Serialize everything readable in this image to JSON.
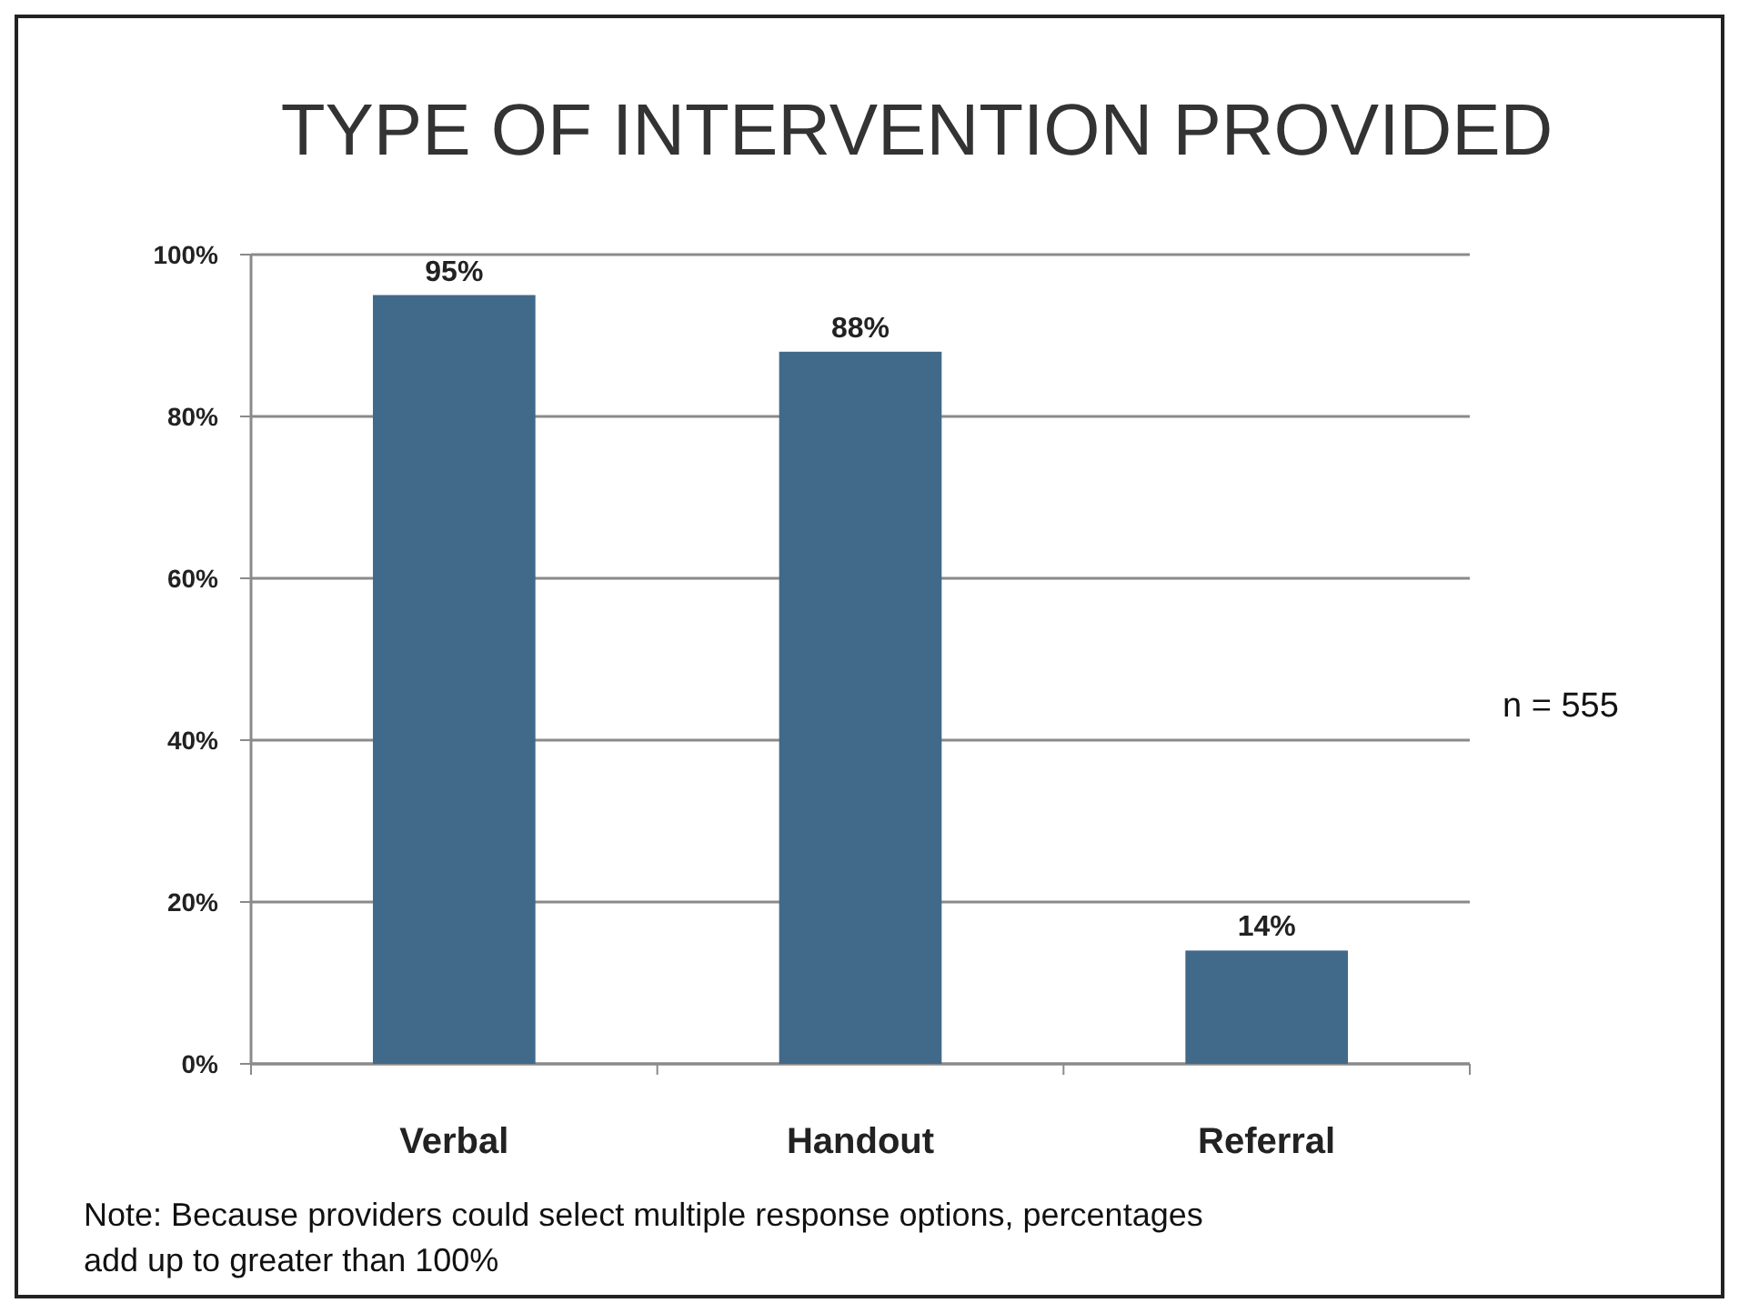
{
  "chart_data": {
    "type": "bar",
    "title": "TYPE OF INTERVENTION PROVIDED",
    "categories": [
      "Verbal",
      "Handout",
      "Referral"
    ],
    "values": [
      95,
      88,
      14
    ],
    "value_labels": [
      "95%",
      "88%",
      "14%"
    ],
    "color": "#41698a",
    "ylim": [
      0,
      100
    ],
    "yticks": [
      {
        "value": 0,
        "label": "0%"
      },
      {
        "value": 20,
        "label": "20%"
      },
      {
        "value": 40,
        "label": "40%"
      },
      {
        "value": 60,
        "label": "60%"
      },
      {
        "value": 80,
        "label": "80%"
      },
      {
        "value": 100,
        "label": "100%"
      }
    ],
    "grid": "y",
    "annotations": [
      "n = 555",
      "Note: Because providers could select multiple response options, percentages add up to greater than 100%"
    ]
  }
}
